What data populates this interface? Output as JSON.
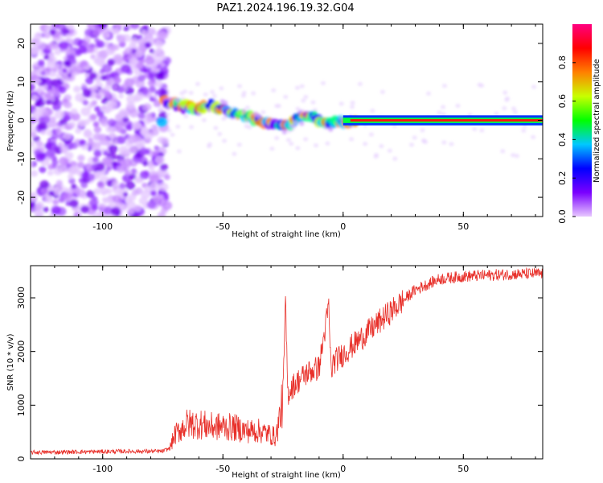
{
  "title": "PAZ1.2024.196.19.32.G04",
  "chart_data": [
    {
      "type": "heatmap",
      "xlabel": "Height of straight line (km)",
      "ylabel": "Frequency (Hz)",
      "xlim": [
        -130,
        83
      ],
      "ylim": [
        -25,
        25
      ],
      "xticks": [
        -100,
        -50,
        0,
        50
      ],
      "yticks": [
        -20,
        -10,
        0,
        10,
        20
      ],
      "colorbar": {
        "label": "Normalized spectral amplitude",
        "range": [
          0,
          1
        ],
        "ticks": [
          "0.0",
          "0.2",
          "0.4",
          "0.6",
          "0.8"
        ],
        "colormap": [
          "#e8c8ff",
          "#7a00ff",
          "#0000ff",
          "#00c8ff",
          "#00ff00",
          "#c8ff00",
          "#ff8000",
          "#ff0000",
          "#ff0080"
        ]
      },
      "ridge": {
        "x": [
          -75,
          -70,
          -65,
          -60,
          -55,
          -50,
          -45,
          -40,
          -35,
          -30,
          -25,
          -20,
          -15,
          -10,
          -5,
          0,
          10,
          20,
          40,
          60,
          83
        ],
        "y": [
          5,
          4,
          3.5,
          3,
          4,
          3,
          2,
          1,
          0,
          -1,
          -1.5,
          0,
          1.5,
          0,
          -0.5,
          -0.5,
          0,
          0,
          0,
          0,
          0
        ]
      },
      "noise_region": [
        -130,
        -75
      ]
    },
    {
      "type": "line",
      "xlabel": "Height of straight line (km)",
      "ylabel": "SNR (10 * v/v)",
      "xlim": [
        -130,
        83
      ],
      "ylim": [
        0,
        3600
      ],
      "xticks": [
        -100,
        -50,
        0,
        50
      ],
      "yticks": [
        0,
        1000,
        2000,
        3000
      ],
      "color": "#e8302a",
      "series": [
        {
          "x": [
            -130,
            -110,
            -90,
            -75,
            -72,
            -70,
            -65,
            -60,
            -55,
            -50,
            -45,
            -40,
            -35,
            -30,
            -28,
            -25,
            -24,
            -23,
            -22,
            -20,
            -15,
            -10,
            -6,
            -5,
            -4,
            0,
            5,
            10,
            15,
            20,
            25,
            30,
            35,
            40,
            50,
            60,
            70,
            83
          ],
          "y": [
            120,
            130,
            140,
            140,
            200,
            450,
            650,
            650,
            600,
            600,
            580,
            520,
            520,
            450,
            400,
            1100,
            2950,
            1200,
            1300,
            1400,
            1600,
            1700,
            2850,
            1600,
            1800,
            1950,
            2150,
            2350,
            2550,
            2750,
            2950,
            3150,
            3250,
            3350,
            3400,
            3420,
            3440,
            3450
          ]
        }
      ]
    }
  ]
}
